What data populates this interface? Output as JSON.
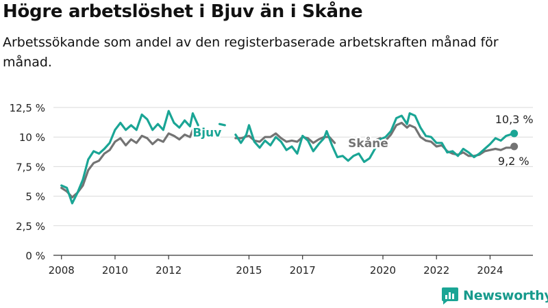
{
  "title": "Högre arbetslöshet i Bjuv än i Skåne",
  "subtitle": "Arbetssökande som andel av den registerbaserade arbetskraften månad för månad.",
  "brand": "Newsworthy",
  "colors": {
    "bjuv": "#1aa595",
    "skane": "#737373",
    "grid": "#d9d9d9",
    "axis": "#333333"
  },
  "chart_data": {
    "type": "line",
    "ylim": [
      0,
      12.5
    ],
    "xlim": [
      2007.7,
      2025.6
    ],
    "y_ticks": [
      {
        "value": 0,
        "label": "0 %"
      },
      {
        "value": 2.5,
        "label": "2,5 %"
      },
      {
        "value": 5,
        "label": "5 %"
      },
      {
        "value": 7.5,
        "label": "7,5 %"
      },
      {
        "value": 10,
        "label": "10 %"
      },
      {
        "value": 12.5,
        "label": "12,5 %"
      }
    ],
    "x_ticks": [
      {
        "value": 2008,
        "label": "2008"
      },
      {
        "value": 2010,
        "label": "2010"
      },
      {
        "value": 2012,
        "label": "2012"
      },
      {
        "value": 2015,
        "label": "2015"
      },
      {
        "value": 2017,
        "label": "2017"
      },
      {
        "value": 2020,
        "label": "2020"
      },
      {
        "value": 2022,
        "label": "2022"
      },
      {
        "value": 2024,
        "label": "2024"
      }
    ],
    "series": [
      {
        "name": "Bjuv",
        "label": "Bjuv",
        "label_at": [
          2012.9,
          10.4
        ],
        "end_label": "10,3 %",
        "points": [
          [
            2008.0,
            5.9
          ],
          [
            2008.2,
            5.7
          ],
          [
            2008.4,
            4.4
          ],
          [
            2008.6,
            5.3
          ],
          [
            2008.8,
            6.4
          ],
          [
            2009.0,
            8.1
          ],
          [
            2009.2,
            8.8
          ],
          [
            2009.4,
            8.6
          ],
          [
            2009.6,
            9.0
          ],
          [
            2009.8,
            9.5
          ],
          [
            2010.0,
            10.6
          ],
          [
            2010.2,
            11.2
          ],
          [
            2010.4,
            10.6
          ],
          [
            2010.6,
            11.0
          ],
          [
            2010.8,
            10.6
          ],
          [
            2011.0,
            11.9
          ],
          [
            2011.2,
            11.5
          ],
          [
            2011.4,
            10.6
          ],
          [
            2011.6,
            11.1
          ],
          [
            2011.8,
            10.6
          ],
          [
            2012.0,
            12.2
          ],
          [
            2012.2,
            11.2
          ],
          [
            2012.4,
            10.8
          ],
          [
            2012.6,
            11.4
          ],
          [
            2012.8,
            10.9
          ],
          [
            2012.9,
            12.0
          ],
          [
            2013.1,
            11.0
          ],
          [
            2013.3,
            null
          ],
          [
            2013.9,
            11.1
          ],
          [
            2014.1,
            11.0
          ],
          [
            2014.3,
            null
          ],
          [
            2014.5,
            10.2
          ],
          [
            2014.7,
            9.5
          ],
          [
            2014.9,
            10.2
          ],
          [
            2015.0,
            11.0
          ],
          [
            2015.2,
            9.6
          ],
          [
            2015.4,
            9.1
          ],
          [
            2015.6,
            9.7
          ],
          [
            2015.8,
            9.3
          ],
          [
            2016.0,
            10.0
          ],
          [
            2016.2,
            9.6
          ],
          [
            2016.4,
            8.9
          ],
          [
            2016.6,
            9.2
          ],
          [
            2016.8,
            8.6
          ],
          [
            2017.0,
            10.1
          ],
          [
            2017.2,
            9.7
          ],
          [
            2017.4,
            8.8
          ],
          [
            2017.6,
            9.4
          ],
          [
            2017.8,
            9.9
          ],
          [
            2017.9,
            10.5
          ],
          [
            2018.1,
            9.3
          ],
          [
            2018.3,
            8.3
          ],
          [
            2018.5,
            8.4
          ],
          [
            2018.7,
            8.0
          ],
          [
            2018.9,
            8.4
          ],
          [
            2019.1,
            8.6
          ],
          [
            2019.3,
            7.9
          ],
          [
            2019.5,
            8.2
          ],
          [
            2019.7,
            9.0
          ],
          [
            2019.9,
            9.8
          ],
          [
            2020.1,
            10.0
          ],
          [
            2020.3,
            10.5
          ],
          [
            2020.5,
            11.6
          ],
          [
            2020.7,
            11.8
          ],
          [
            2020.9,
            11.1
          ],
          [
            2021.0,
            12.0
          ],
          [
            2021.2,
            11.8
          ],
          [
            2021.4,
            10.8
          ],
          [
            2021.6,
            10.1
          ],
          [
            2021.8,
            10.0
          ],
          [
            2022.0,
            9.5
          ],
          [
            2022.2,
            9.5
          ],
          [
            2022.4,
            8.7
          ],
          [
            2022.6,
            8.8
          ],
          [
            2022.8,
            8.4
          ],
          [
            2023.0,
            9.0
          ],
          [
            2023.2,
            8.7
          ],
          [
            2023.4,
            8.3
          ],
          [
            2023.6,
            8.6
          ],
          [
            2023.8,
            9.0
          ],
          [
            2024.0,
            9.4
          ],
          [
            2024.2,
            9.9
          ],
          [
            2024.4,
            9.7
          ],
          [
            2024.6,
            10.1
          ],
          [
            2024.75,
            10.2
          ],
          [
            2024.9,
            10.3
          ]
        ]
      },
      {
        "name": "Skåne",
        "label": "Skåne",
        "label_at": [
          2018.7,
          9.5
        ],
        "end_label": "9,2 %",
        "points": [
          [
            2008.0,
            5.7
          ],
          [
            2008.2,
            5.4
          ],
          [
            2008.4,
            4.9
          ],
          [
            2008.6,
            5.3
          ],
          [
            2008.8,
            5.9
          ],
          [
            2009.0,
            7.2
          ],
          [
            2009.2,
            7.8
          ],
          [
            2009.4,
            8.0
          ],
          [
            2009.6,
            8.6
          ],
          [
            2009.8,
            8.9
          ],
          [
            2010.0,
            9.6
          ],
          [
            2010.2,
            9.9
          ],
          [
            2010.4,
            9.3
          ],
          [
            2010.6,
            9.8
          ],
          [
            2010.8,
            9.5
          ],
          [
            2011.0,
            10.1
          ],
          [
            2011.2,
            9.9
          ],
          [
            2011.4,
            9.4
          ],
          [
            2011.6,
            9.8
          ],
          [
            2011.8,
            9.6
          ],
          [
            2012.0,
            10.3
          ],
          [
            2012.2,
            10.1
          ],
          [
            2012.4,
            9.8
          ],
          [
            2012.6,
            10.2
          ],
          [
            2012.8,
            10.0
          ],
          [
            2012.9,
            10.6
          ],
          [
            2013.1,
            null
          ],
          [
            2014.5,
            9.9
          ],
          [
            2014.7,
            9.9
          ],
          [
            2015.0,
            10.1
          ],
          [
            2015.2,
            9.7
          ],
          [
            2015.4,
            9.6
          ],
          [
            2015.6,
            10.0
          ],
          [
            2015.8,
            10.0
          ],
          [
            2016.0,
            10.3
          ],
          [
            2016.2,
            9.9
          ],
          [
            2016.4,
            9.6
          ],
          [
            2016.6,
            9.7
          ],
          [
            2016.8,
            9.6
          ],
          [
            2017.0,
            10.0
          ],
          [
            2017.2,
            9.9
          ],
          [
            2017.4,
            9.5
          ],
          [
            2017.6,
            9.8
          ],
          [
            2017.8,
            10.0
          ],
          [
            2018.0,
            10.0
          ],
          [
            2018.2,
            9.5
          ],
          [
            2018.4,
            null
          ],
          [
            2019.7,
            9.7
          ],
          [
            2019.9,
            9.9
          ],
          [
            2020.1,
            9.7
          ],
          [
            2020.3,
            10.2
          ],
          [
            2020.5,
            11.0
          ],
          [
            2020.7,
            11.2
          ],
          [
            2020.9,
            10.8
          ],
          [
            2021.0,
            11.0
          ],
          [
            2021.2,
            10.8
          ],
          [
            2021.4,
            10.0
          ],
          [
            2021.6,
            9.7
          ],
          [
            2021.8,
            9.6
          ],
          [
            2022.0,
            9.2
          ],
          [
            2022.2,
            9.3
          ],
          [
            2022.4,
            8.8
          ],
          [
            2022.6,
            8.6
          ],
          [
            2022.8,
            8.5
          ],
          [
            2023.0,
            8.7
          ],
          [
            2023.2,
            8.4
          ],
          [
            2023.4,
            8.4
          ],
          [
            2023.6,
            8.5
          ],
          [
            2023.8,
            8.8
          ],
          [
            2024.0,
            8.9
          ],
          [
            2024.2,
            9.0
          ],
          [
            2024.4,
            8.9
          ],
          [
            2024.6,
            9.1
          ],
          [
            2024.75,
            9.1
          ],
          [
            2024.9,
            9.2
          ]
        ]
      }
    ]
  }
}
